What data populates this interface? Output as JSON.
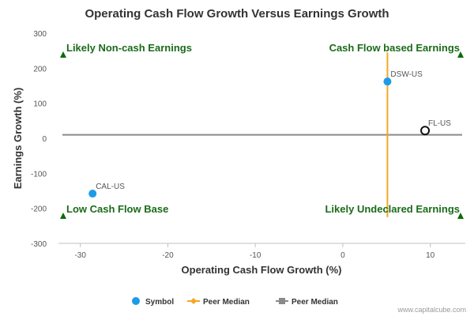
{
  "chart_data": {
    "type": "scatter",
    "title": "Operating Cash Flow Growth Versus Earnings Growth",
    "xlabel": "Operating Cash Flow Growth (%)",
    "ylabel": "Earnings Growth (%)",
    "xlim": [
      -32.5,
      14
    ],
    "ylim": [
      -300,
      300
    ],
    "x_ticks": [
      -30,
      -20,
      -10,
      0,
      10
    ],
    "x_tick_labels": [
      "-30",
      "-20",
      "-10",
      "0",
      "10"
    ],
    "y_ticks": [
      300,
      200,
      100,
      0,
      -100,
      -200,
      -300
    ],
    "y_tick_labels": [
      "300",
      "200",
      "100",
      "0",
      "-100",
      "-200",
      "-300"
    ],
    "grid": false,
    "points": [
      {
        "label": "DSW-US",
        "x": 5.1,
        "y": 162,
        "style": "filled",
        "color": "#1e9be8"
      },
      {
        "label": "FL-US",
        "x": 9.4,
        "y": 22,
        "style": "hollow",
        "color": "#111111"
      },
      {
        "label": "CAL-US",
        "x": -28.6,
        "y": -158,
        "style": "filled",
        "color": "#1e9be8"
      }
    ],
    "peer_median_x": {
      "value": 5.1,
      "y_range": [
        -225,
        245
      ],
      "color": "#f5a623"
    },
    "peer_median_y": {
      "value": 10,
      "color": "#8a8a8a"
    },
    "quadrants": [
      {
        "label": "Likely Non-cash Earnings",
        "position": "top-left"
      },
      {
        "label": "Cash Flow based Earnings",
        "position": "top-right"
      },
      {
        "label": "Low Cash Flow Base",
        "position": "bottom-left"
      },
      {
        "label": "Likely Undeclared Earnings",
        "position": "bottom-right"
      }
    ],
    "quadrant_color": "#1a6b1a",
    "legend": [
      {
        "name": "Symbol",
        "kind": "dot",
        "color": "#1e9be8"
      },
      {
        "name": "Peer Median",
        "kind": "line-diamond",
        "color": "#f5a623"
      },
      {
        "name": "Peer Median",
        "kind": "line-square",
        "color": "#8a8a8a"
      }
    ],
    "legend_placement": "bottom-center"
  },
  "credit": "www.capitalcube.com"
}
